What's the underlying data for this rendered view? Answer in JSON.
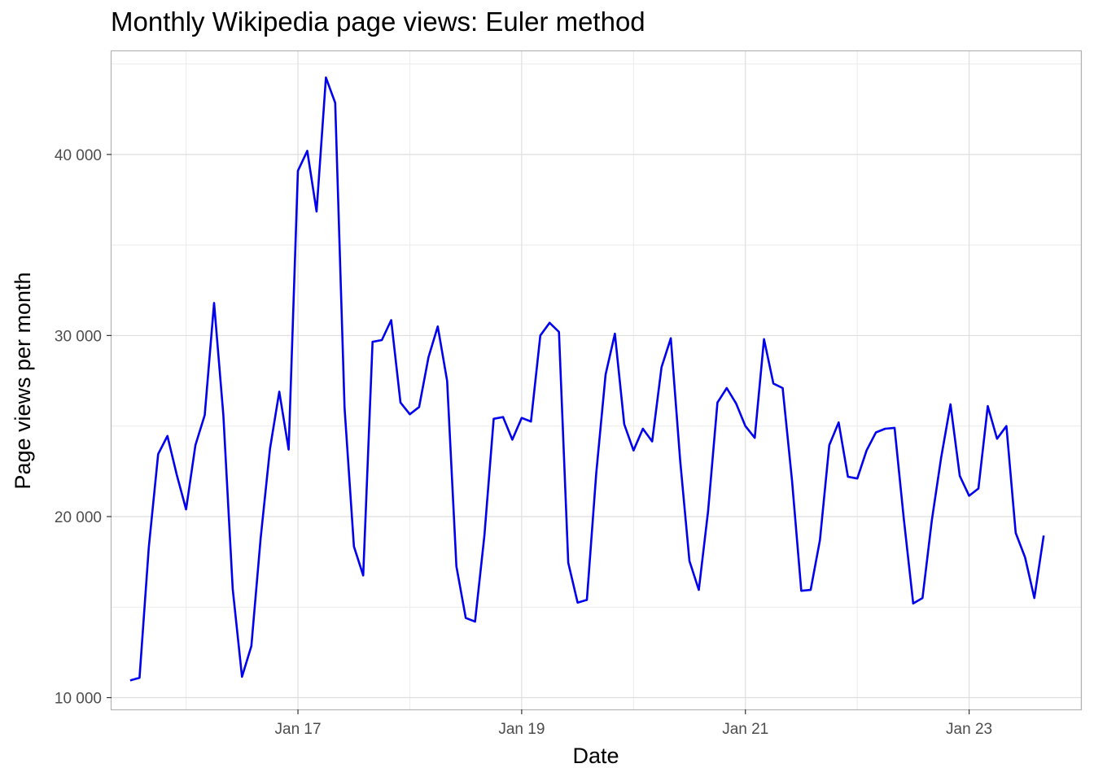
{
  "chart_data": {
    "type": "line",
    "title": "Monthly Wikipedia page views: Euler method",
    "xlabel": "Date",
    "ylabel": "Page views per month",
    "x_ticks": [
      {
        "date": "2017-01",
        "label": "Jan 17"
      },
      {
        "date": "2019-01",
        "label": "Jan 19"
      },
      {
        "date": "2021-01",
        "label": "Jan 21"
      },
      {
        "date": "2023-01",
        "label": "Jan 23"
      }
    ],
    "y_ticks": [
      {
        "value": 10000,
        "label": "10 000"
      },
      {
        "value": 20000,
        "label": "20 000"
      },
      {
        "value": 30000,
        "label": "30 000"
      },
      {
        "value": 40000,
        "label": "40 000"
      }
    ],
    "xlim": [
      "2015-05",
      "2024-01"
    ],
    "ylim": [
      9350,
      45700
    ],
    "grid": true,
    "line_color": "#0000ee",
    "series": [
      {
        "x": [
          "2015-07",
          "2015-08",
          "2015-09",
          "2015-10",
          "2015-11",
          "2015-12",
          "2016-01",
          "2016-02",
          "2016-03",
          "2016-04",
          "2016-05",
          "2016-06",
          "2016-07",
          "2016-08",
          "2016-09",
          "2016-10",
          "2016-11",
          "2016-12",
          "2017-01",
          "2017-02",
          "2017-03",
          "2017-04",
          "2017-05",
          "2017-06",
          "2017-07",
          "2017-08",
          "2017-09",
          "2017-10",
          "2017-11",
          "2017-12",
          "2018-01",
          "2018-02",
          "2018-03",
          "2018-04",
          "2018-05",
          "2018-06",
          "2018-07",
          "2018-08",
          "2018-09",
          "2018-10",
          "2018-11",
          "2018-12",
          "2019-01",
          "2019-02",
          "2019-03",
          "2019-04",
          "2019-05",
          "2019-06",
          "2019-07",
          "2019-08",
          "2019-09",
          "2019-10",
          "2019-11",
          "2019-12",
          "2020-01",
          "2020-02",
          "2020-03",
          "2020-04",
          "2020-05",
          "2020-06",
          "2020-07",
          "2020-08",
          "2020-09",
          "2020-10",
          "2020-11",
          "2020-12",
          "2021-01",
          "2021-02",
          "2021-03",
          "2021-04",
          "2021-05",
          "2021-06",
          "2021-07",
          "2021-08",
          "2021-09",
          "2021-10",
          "2021-11",
          "2021-12",
          "2022-01",
          "2022-02",
          "2022-03",
          "2022-04",
          "2022-05",
          "2022-06",
          "2022-07",
          "2022-08",
          "2022-09",
          "2022-10",
          "2022-11",
          "2022-12",
          "2023-01",
          "2023-02",
          "2023-03",
          "2023-04",
          "2023-05",
          "2023-06",
          "2023-07",
          "2023-08",
          "2023-09"
        ],
        "values": [
          10950,
          11100,
          18300,
          23450,
          24450,
          22300,
          20400,
          23950,
          25600,
          31800,
          25600,
          16000,
          11150,
          12850,
          18800,
          23750,
          26900,
          23700,
          39100,
          40200,
          36850,
          44250,
          42850,
          26000,
          18350,
          16750,
          29650,
          29750,
          30850,
          26300,
          25650,
          26050,
          28800,
          30500,
          27500,
          17250,
          14400,
          14200,
          18950,
          25400,
          25500,
          24250,
          25450,
          25250,
          30000,
          30700,
          30200,
          17450,
          15250,
          15400,
          22400,
          27850,
          30100,
          25100,
          23650,
          24850,
          24150,
          28250,
          29850,
          23100,
          17550,
          15950,
          20300,
          26300,
          27100,
          26250,
          25000,
          24350,
          29800,
          27350,
          27100,
          22000,
          15900,
          15950,
          18700,
          23950,
          25200,
          22200,
          22100,
          23650,
          24650,
          24850,
          24900,
          19850,
          15200,
          15500,
          19800,
          23250,
          26200,
          22250,
          21150,
          21550,
          26100,
          24300,
          25000,
          19100,
          17750,
          15500,
          18950
        ]
      }
    ]
  }
}
